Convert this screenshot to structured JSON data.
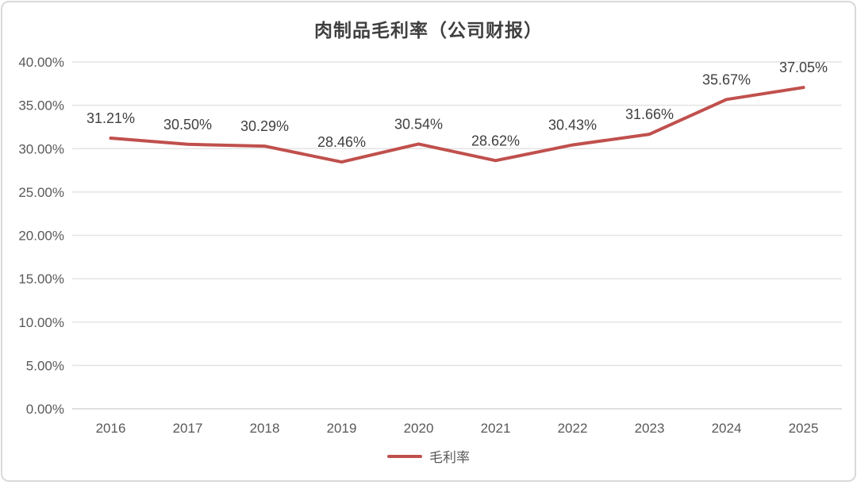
{
  "chart_data": {
    "type": "line",
    "title": "肉制品毛利率（公司财报）",
    "categories": [
      "2016",
      "2017",
      "2018",
      "2019",
      "2020",
      "2021",
      "2022",
      "2023",
      "2024",
      "2025"
    ],
    "series": [
      {
        "name": "毛利率",
        "color": "#c0504d",
        "values": [
          31.21,
          30.5,
          30.29,
          28.46,
          30.54,
          28.62,
          30.43,
          31.66,
          35.67,
          37.05
        ],
        "data_labels": [
          "31.21%",
          "30.50%",
          "30.29%",
          "28.46%",
          "30.54%",
          "28.62%",
          "30.43%",
          "31.66%",
          "35.67%",
          "37.05%"
        ]
      }
    ],
    "y_axis": {
      "min": 0,
      "max": 40,
      "tick_values": [
        0,
        5,
        10,
        15,
        20,
        25,
        30,
        35,
        40
      ],
      "tick_labels": [
        "0.00%",
        "5.00%",
        "10.00%",
        "15.00%",
        "20.00%",
        "25.00%",
        "30.00%",
        "35.00%",
        "40.00%"
      ]
    },
    "grid": true,
    "legend_position": "bottom",
    "colors": {
      "label_text": "#404040",
      "tick_text": "#595959",
      "gridline": "#e4e4e4",
      "axis_line": "#d6d6d6",
      "card_border": "#d9d9d9"
    }
  }
}
